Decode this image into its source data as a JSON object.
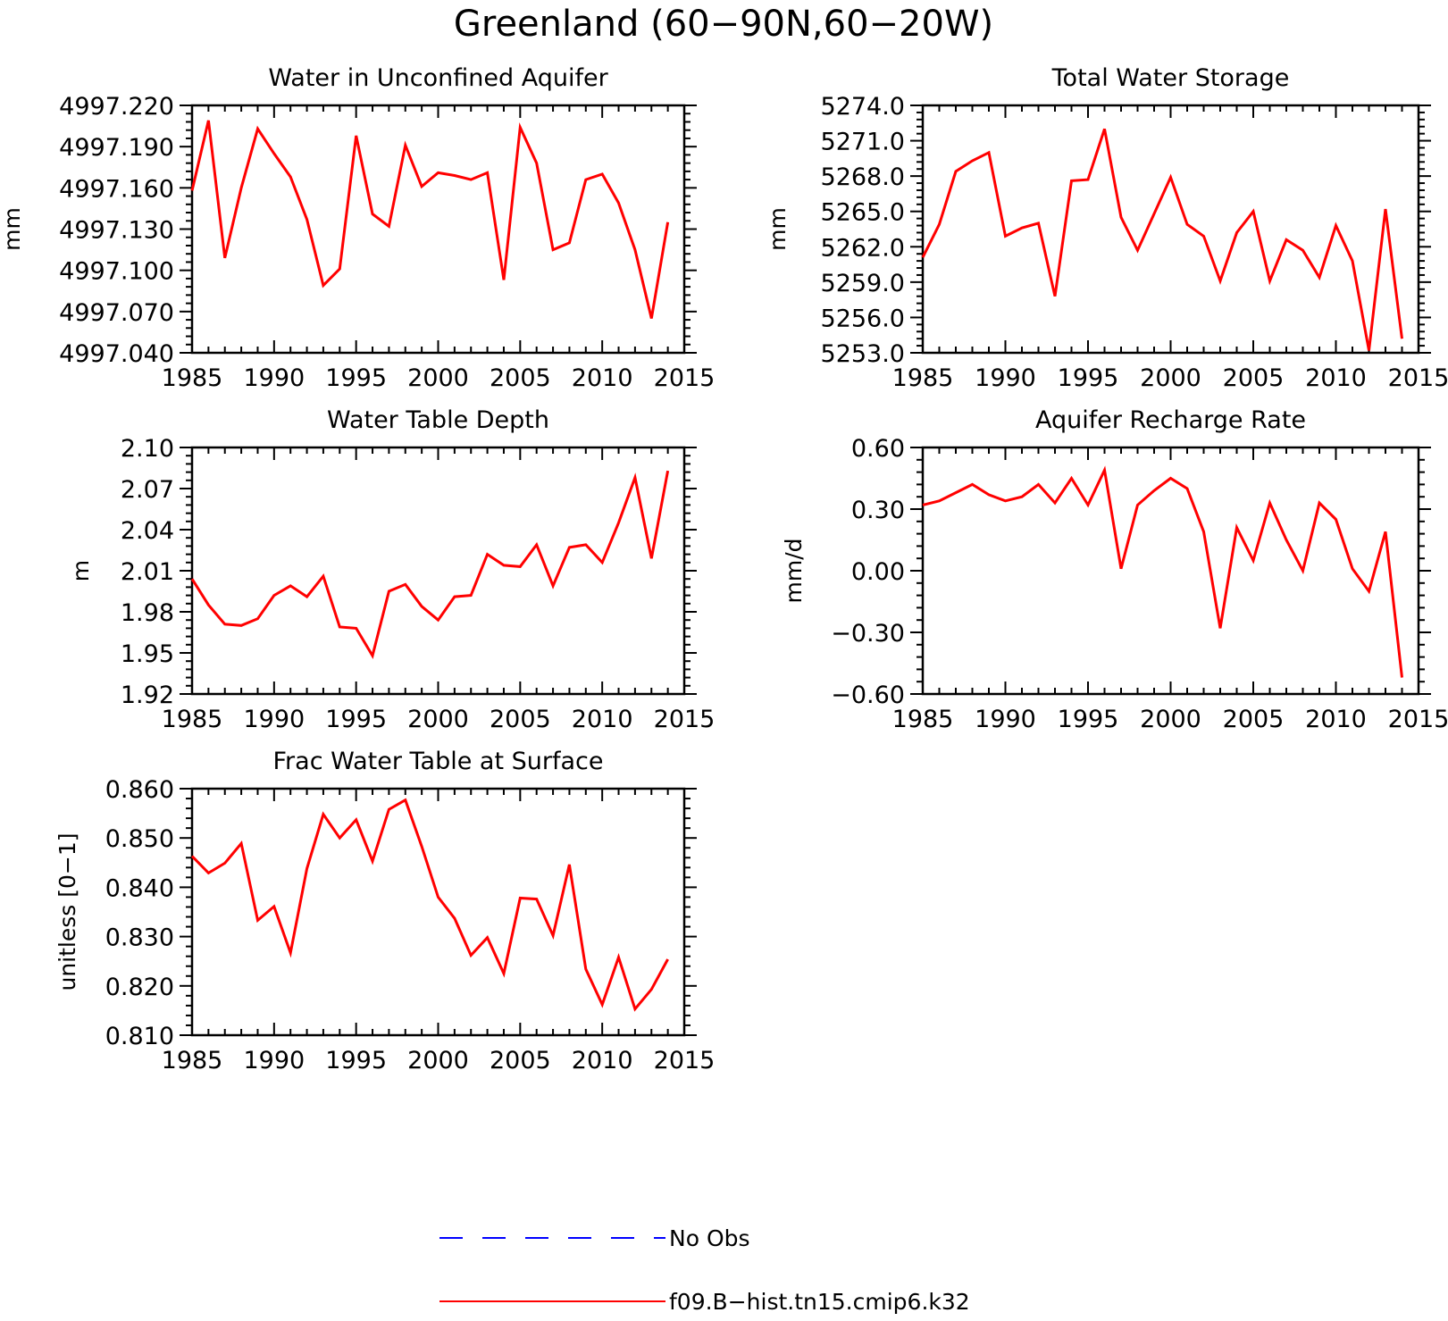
{
  "title": "Greenland (60-90N,60-20W)",
  "colors": {
    "model": "#ff0000",
    "obs": "#0000ff",
    "axis": "#000000"
  },
  "legend": [
    {
      "label": "No Obs",
      "color": "#0000ff",
      "style": "dashed"
    },
    {
      "label": "f09.B-hist.tn15.cmip6.k32",
      "color": "#ff0000",
      "style": "solid"
    }
  ],
  "chart_data": [
    {
      "type": "line",
      "title": "Water in Unconfined Aquifer",
      "ylabel": "mm",
      "xlim": [
        1985,
        2015
      ],
      "ylim": [
        4997.04,
        4997.22
      ],
      "xticks": [
        "1985",
        "1990",
        "1995",
        "2000",
        "2005",
        "2010",
        "2015"
      ],
      "yticks": [
        "4997.040",
        "4997.070",
        "4997.100",
        "4997.130",
        "4997.160",
        "4997.190",
        "4997.220"
      ],
      "series": [
        {
          "name": "f09.B-hist.tn15.cmip6.k32",
          "x": [
            1985,
            1986,
            1987,
            1988,
            1989,
            1990,
            1991,
            1992,
            1993,
            1994,
            1995,
            1996,
            1997,
            1998,
            1999,
            2000,
            2001,
            2002,
            2003,
            2004,
            2005,
            2006,
            2007,
            2008,
            2009,
            2010,
            2011,
            2012,
            2013,
            2014
          ],
          "values": [
            4997.158,
            4997.209,
            4997.109,
            4997.16,
            4997.203,
            4997.185,
            4997.168,
            4997.137,
            4997.089,
            4997.101,
            4997.198,
            4997.141,
            4997.132,
            4997.191,
            4997.161,
            4997.171,
            4997.169,
            4997.166,
            4997.171,
            4997.093,
            4997.204,
            4997.178,
            4997.115,
            4997.12,
            4997.166,
            4997.17,
            4997.149,
            4997.115,
            4997.065,
            4997.135
          ]
        }
      ]
    },
    {
      "type": "line",
      "title": "Total Water Storage",
      "ylabel": "mm",
      "xlim": [
        1985,
        2015
      ],
      "ylim": [
        5253.0,
        5274.0
      ],
      "xticks": [
        "1985",
        "1990",
        "1995",
        "2000",
        "2005",
        "2010",
        "2015"
      ],
      "yticks": [
        "5253.0",
        "5256.0",
        "5259.0",
        "5262.0",
        "5265.0",
        "5268.0",
        "5271.0",
        "5274.0"
      ],
      "series": [
        {
          "name": "f09.B-hist.tn15.cmip6.k32",
          "x": [
            1985,
            1986,
            1987,
            1988,
            1989,
            1990,
            1991,
            1992,
            1993,
            1994,
            1995,
            1996,
            1997,
            1998,
            1999,
            2000,
            2001,
            2002,
            2003,
            2004,
            2005,
            2006,
            2007,
            2008,
            2009,
            2010,
            2011,
            2012,
            2013,
            2014
          ],
          "values": [
            5261.1,
            5263.9,
            5268.4,
            5269.3,
            5270.0,
            5262.9,
            5263.6,
            5264.0,
            5257.8,
            5267.6,
            5267.7,
            5272.0,
            5264.5,
            5261.7,
            5264.8,
            5267.9,
            5263.9,
            5262.9,
            5259.1,
            5263.2,
            5265.0,
            5259.1,
            5262.6,
            5261.7,
            5259.4,
            5263.8,
            5260.8,
            5253.2,
            5265.2,
            5254.2
          ]
        }
      ]
    },
    {
      "type": "line",
      "title": "Water Table Depth",
      "ylabel": "m",
      "xlim": [
        1985,
        2015
      ],
      "ylim": [
        1.92,
        2.1
      ],
      "xticks": [
        "1985",
        "1990",
        "1995",
        "2000",
        "2005",
        "2010",
        "2015"
      ],
      "yticks": [
        "1.92",
        "1.95",
        "1.98",
        "2.01",
        "2.04",
        "2.07",
        "2.10"
      ],
      "series": [
        {
          "name": "f09.B-hist.tn15.cmip6.k32",
          "x": [
            1985,
            1986,
            1987,
            1988,
            1989,
            1990,
            1991,
            1992,
            1993,
            1994,
            1995,
            1996,
            1997,
            1998,
            1999,
            2000,
            2001,
            2002,
            2003,
            2004,
            2005,
            2006,
            2007,
            2008,
            2009,
            2010,
            2011,
            2012,
            2013,
            2014
          ],
          "values": [
            2.004,
            1.985,
            1.971,
            1.97,
            1.975,
            1.992,
            1.999,
            1.991,
            2.006,
            1.969,
            1.968,
            1.948,
            1.995,
            2.0,
            1.984,
            1.974,
            1.991,
            1.992,
            2.022,
            2.014,
            2.013,
            2.029,
            1.999,
            2.027,
            2.029,
            2.016,
            2.045,
            2.078,
            2.019,
            2.083
          ]
        }
      ]
    },
    {
      "type": "line",
      "title": "Aquifer Recharge Rate",
      "ylabel": "mm/d",
      "xlim": [
        1985,
        2015
      ],
      "ylim": [
        -0.6,
        0.6
      ],
      "xticks": [
        "1985",
        "1990",
        "1995",
        "2000",
        "2005",
        "2010",
        "2015"
      ],
      "yticks": [
        "-0.60",
        "-0.30",
        "0.00",
        "0.30",
        "0.60"
      ],
      "series": [
        {
          "name": "f09.B-hist.tn15.cmip6.k32",
          "x": [
            1985,
            1986,
            1987,
            1988,
            1989,
            1990,
            1991,
            1992,
            1993,
            1994,
            1995,
            1996,
            1997,
            1998,
            1999,
            2000,
            2001,
            2002,
            2003,
            2004,
            2005,
            2006,
            2007,
            2008,
            2009,
            2010,
            2011,
            2012,
            2013,
            2014
          ],
          "values": [
            0.32,
            0.34,
            0.38,
            0.42,
            0.37,
            0.34,
            0.36,
            0.42,
            0.33,
            0.45,
            0.32,
            0.49,
            0.01,
            0.32,
            0.39,
            0.45,
            0.4,
            0.19,
            -0.28,
            0.21,
            0.05,
            0.33,
            0.15,
            0.0,
            0.33,
            0.25,
            0.01,
            -0.1,
            0.19,
            -0.52
          ]
        }
      ]
    },
    {
      "type": "line",
      "title": "Frac Water Table at Surface",
      "ylabel": "unitless [0-1]",
      "xlim": [
        1985,
        2015
      ],
      "ylim": [
        0.81,
        0.86
      ],
      "xticks": [
        "1985",
        "1990",
        "1995",
        "2000",
        "2005",
        "2010",
        "2015"
      ],
      "yticks": [
        "0.810",
        "0.820",
        "0.830",
        "0.840",
        "0.850",
        "0.860"
      ],
      "series": [
        {
          "name": "f09.B-hist.tn15.cmip6.k32",
          "x": [
            1985,
            1986,
            1987,
            1988,
            1989,
            1990,
            1991,
            1992,
            1993,
            1994,
            1995,
            1996,
            1997,
            1998,
            1999,
            2000,
            2001,
            2002,
            2003,
            2004,
            2005,
            2006,
            2007,
            2008,
            2009,
            2010,
            2011,
            2012,
            2013,
            2014
          ],
          "values": [
            0.8463,
            0.8429,
            0.8449,
            0.8489,
            0.8333,
            0.8361,
            0.8267,
            0.8438,
            0.8548,
            0.85,
            0.8537,
            0.8453,
            0.8558,
            0.8577,
            0.8483,
            0.838,
            0.8337,
            0.8262,
            0.8298,
            0.8225,
            0.8378,
            0.8376,
            0.8302,
            0.8446,
            0.8234,
            0.8162,
            0.8258,
            0.8153,
            0.8193,
            0.8254
          ]
        }
      ]
    }
  ]
}
